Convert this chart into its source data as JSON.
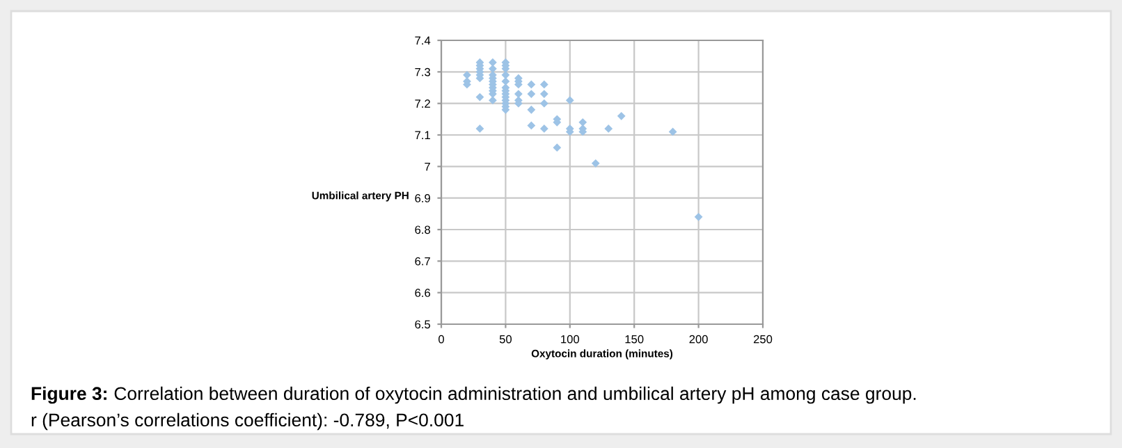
{
  "chart_data": {
    "type": "scatter",
    "xlabel": "Oxytocin duration (minutes)",
    "ylabel": "Umbilical artery PH",
    "x": [
      20,
      20,
      20,
      30,
      30,
      30,
      30,
      30,
      30,
      30,
      30,
      40,
      40,
      40,
      40,
      40,
      40,
      40,
      40,
      40,
      40,
      50,
      50,
      50,
      50,
      50,
      50,
      50,
      50,
      50,
      50,
      50,
      50,
      50,
      60,
      60,
      60,
      60,
      60,
      60,
      70,
      70,
      70,
      70,
      80,
      80,
      80,
      80,
      90,
      90,
      90,
      100,
      100,
      100,
      110,
      110,
      110,
      120,
      130,
      140,
      180,
      200
    ],
    "values": [
      7.29,
      7.27,
      7.26,
      7.33,
      7.32,
      7.31,
      7.3,
      7.29,
      7.28,
      7.22,
      7.12,
      7.33,
      7.31,
      7.29,
      7.28,
      7.27,
      7.26,
      7.25,
      7.24,
      7.23,
      7.21,
      7.33,
      7.32,
      7.31,
      7.29,
      7.27,
      7.25,
      7.24,
      7.23,
      7.22,
      7.21,
      7.2,
      7.19,
      7.18,
      7.28,
      7.27,
      7.26,
      7.23,
      7.21,
      7.2,
      7.26,
      7.23,
      7.18,
      7.13,
      7.26,
      7.23,
      7.2,
      7.12,
      7.15,
      7.14,
      7.06,
      7.21,
      7.12,
      7.11,
      7.14,
      7.12,
      7.11,
      7.01,
      7.12,
      7.16,
      7.11,
      6.84
    ],
    "color": "#9dc3e6",
    "marker": "diamond",
    "grid": true,
    "xlim": [
      0,
      250
    ],
    "xticks": [
      0,
      50,
      100,
      150,
      200,
      250
    ],
    "ylim": [
      6.5,
      7.4
    ],
    "yticks": [
      {
        "value": 6.5,
        "label": "6.5"
      },
      {
        "value": 6.6,
        "label": "6.6"
      },
      {
        "value": 6.7,
        "label": "6.7"
      },
      {
        "value": 6.8,
        "label": "6.8"
      },
      {
        "value": 6.9,
        "label": "6.9"
      },
      {
        "value": 7,
        "label": "7"
      },
      {
        "value": 7.1,
        "label": "7.1"
      },
      {
        "value": 7.2,
        "label": "7.2"
      },
      {
        "value": 7.3,
        "label": "7.3"
      },
      {
        "value": 7.4,
        "label": "7.4"
      }
    ],
    "annotations": [
      "Figure 3: Correlation between duration of oxytocin administration and umbilical artery pH among case group.",
      "r (Pearson’s correlations coefficient): -0.789, P<0.001"
    ]
  }
}
